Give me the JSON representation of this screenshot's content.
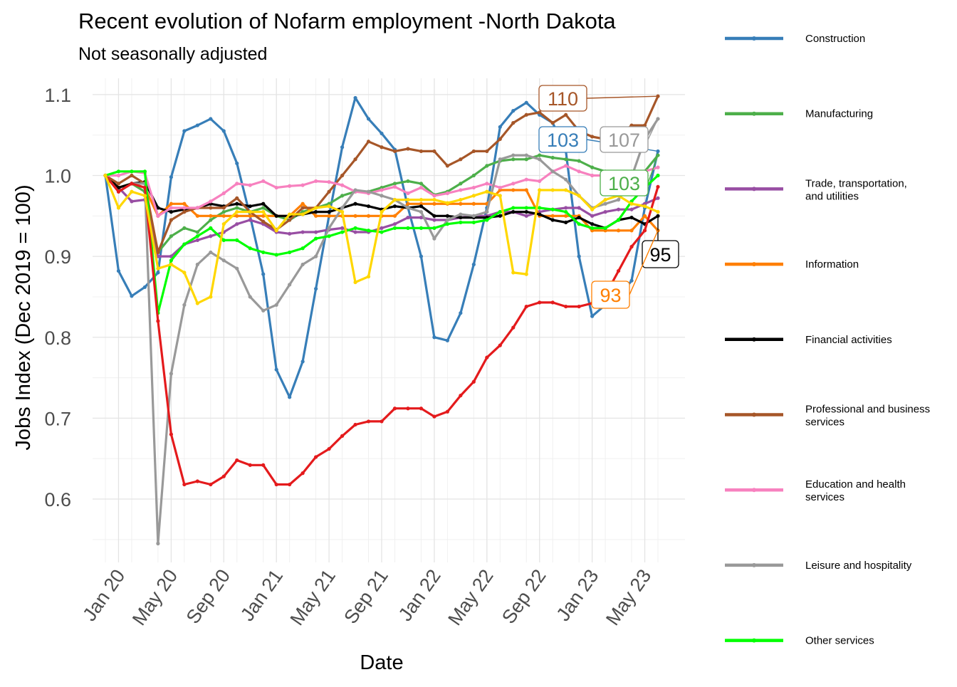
{
  "chart_data": {
    "type": "line",
    "title": "Recent evolution of Nofarm employment -North Dakota",
    "subtitle": "Not seasonally adjusted",
    "xlabel": "Date",
    "ylabel": "Jobs Index (Dec 2019 = 100)",
    "x_tick_labels": [
      "Jan 20",
      "May 20",
      "Sep 20",
      "Jan 21",
      "May 21",
      "Sep 21",
      "Jan 22",
      "May 22",
      "Sep 22",
      "Jan 23",
      "May 23"
    ],
    "y_tick_labels": [
      "0.6",
      "0.7",
      "0.8",
      "0.9",
      "1.0",
      "1.1"
    ],
    "y_ticks": [
      0.6,
      0.7,
      0.8,
      0.9,
      1.0,
      1.1
    ],
    "ylim": [
      0.52,
      1.13
    ],
    "grid": true,
    "legend_position": "right",
    "x_dates": [
      "Dec 19",
      "Jan 20",
      "Feb 20",
      "Mar 20",
      "Apr 20",
      "May 20",
      "Jun 20",
      "Jul 20",
      "Aug 20",
      "Sep 20",
      "Oct 20",
      "Nov 20",
      "Dec 20",
      "Jan 21",
      "Feb 21",
      "Mar 21",
      "Apr 21",
      "May 21",
      "Jun 21",
      "Jul 21",
      "Aug 21",
      "Sep 21",
      "Oct 21",
      "Nov 21",
      "Dec 21",
      "Jan 22",
      "Feb 22",
      "Mar 22",
      "Apr 22",
      "May 22",
      "Jun 22",
      "Jul 22",
      "Aug 22",
      "Sep 22",
      "Oct 22",
      "Nov 22",
      "Dec 22",
      "Jan 23",
      "Feb 23",
      "Mar 23",
      "Apr 23",
      "May 23",
      "Jun 23"
    ],
    "series": [
      {
        "name": "Construction",
        "color": "#377EB8",
        "values": [
          1.0,
          0.882,
          0.851,
          0.862,
          0.88,
          0.998,
          1.055,
          1.062,
          1.07,
          1.055,
          1.015,
          0.95,
          0.878,
          0.76,
          0.726,
          0.77,
          0.86,
          0.95,
          1.035,
          1.096,
          1.07,
          1.052,
          1.032,
          0.96,
          0.9,
          0.8,
          0.796,
          0.83,
          0.89,
          0.96,
          1.06,
          1.08,
          1.09,
          1.075,
          1.065,
          1.03,
          0.9,
          0.826,
          0.84,
          0.85,
          0.87,
          0.96,
          1.03
        ]
      },
      {
        "name": "Manufacturing",
        "color": "#4DAF4A",
        "values": [
          1.0,
          0.985,
          0.99,
          0.98,
          0.905,
          0.925,
          0.935,
          0.93,
          0.945,
          0.955,
          0.96,
          0.955,
          0.96,
          0.95,
          0.945,
          0.955,
          0.96,
          0.965,
          0.975,
          0.98,
          0.98,
          0.985,
          0.99,
          0.993,
          0.99,
          0.976,
          0.98,
          0.99,
          1.0,
          1.012,
          1.018,
          1.02,
          1.02,
          1.025,
          1.022,
          1.02,
          1.018,
          1.01,
          1.005,
          1.0,
          0.998,
          1.005,
          1.025
        ]
      },
      {
        "name": "Trade, transportation, and utilities",
        "color": "#984EA3",
        "values": [
          1.0,
          0.985,
          0.968,
          0.97,
          0.9,
          0.9,
          0.915,
          0.92,
          0.925,
          0.93,
          0.94,
          0.945,
          0.94,
          0.93,
          0.928,
          0.93,
          0.93,
          0.933,
          0.935,
          0.93,
          0.93,
          0.935,
          0.94,
          0.948,
          0.948,
          0.945,
          0.945,
          0.948,
          0.95,
          0.95,
          0.955,
          0.955,
          0.95,
          0.955,
          0.958,
          0.96,
          0.96,
          0.95,
          0.955,
          0.958,
          0.958,
          0.965,
          0.972
        ]
      },
      {
        "name": "Information",
        "color": "#FF7F00",
        "values": [
          1.0,
          0.985,
          0.99,
          0.985,
          0.95,
          0.965,
          0.965,
          0.95,
          0.95,
          0.95,
          0.95,
          0.95,
          0.95,
          0.95,
          0.95,
          0.965,
          0.95,
          0.95,
          0.95,
          0.95,
          0.95,
          0.95,
          0.95,
          0.965,
          0.965,
          0.965,
          0.965,
          0.965,
          0.965,
          0.965,
          0.982,
          0.982,
          0.982,
          0.95,
          0.95,
          0.95,
          0.95,
          0.932,
          0.932,
          0.932,
          0.932,
          0.95,
          0.932
        ]
      },
      {
        "name": "Financial activities",
        "color": "#000000",
        "values": [
          1.0,
          0.985,
          0.99,
          0.992,
          0.96,
          0.955,
          0.958,
          0.96,
          0.965,
          0.962,
          0.965,
          0.962,
          0.965,
          0.95,
          0.95,
          0.952,
          0.955,
          0.955,
          0.96,
          0.965,
          0.962,
          0.958,
          0.962,
          0.96,
          0.962,
          0.95,
          0.95,
          0.948,
          0.948,
          0.948,
          0.95,
          0.955,
          0.955,
          0.952,
          0.945,
          0.942,
          0.948,
          0.94,
          0.935,
          0.945,
          0.948,
          0.94,
          0.95
        ]
      },
      {
        "name": "Professional and business services",
        "color": "#A65628",
        "values": [
          1.0,
          0.99,
          1.0,
          0.99,
          0.905,
          0.945,
          0.955,
          0.96,
          0.96,
          0.96,
          0.972,
          0.955,
          0.943,
          0.933,
          0.945,
          0.96,
          0.96,
          0.98,
          1.0,
          1.02,
          1.042,
          1.035,
          1.03,
          1.033,
          1.03,
          1.03,
          1.012,
          1.02,
          1.03,
          1.03,
          1.045,
          1.065,
          1.075,
          1.078,
          1.065,
          1.075,
          1.055,
          1.048,
          1.045,
          1.048,
          1.062,
          1.062,
          1.098
        ]
      },
      {
        "name": "Education and health services",
        "color": "#F781BF",
        "values": [
          1.0,
          1.0,
          1.005,
          1.003,
          0.95,
          0.96,
          0.96,
          0.96,
          0.968,
          0.978,
          0.99,
          0.988,
          0.993,
          0.985,
          0.987,
          0.988,
          0.993,
          0.992,
          0.988,
          0.98,
          0.978,
          0.982,
          0.986,
          0.978,
          0.985,
          0.975,
          0.978,
          0.982,
          0.985,
          0.99,
          0.985,
          0.99,
          0.995,
          0.993,
          1.005,
          1.012,
          1.005,
          1.0,
          1.0,
          1.003,
          1.005,
          1.005,
          1.01
        ]
      },
      {
        "name": "Leisure and hospitality",
        "color": "#999999",
        "values": [
          1.0,
          0.98,
          0.99,
          0.99,
          0.545,
          0.755,
          0.84,
          0.89,
          0.905,
          0.895,
          0.885,
          0.85,
          0.833,
          0.84,
          0.865,
          0.89,
          0.9,
          0.935,
          0.96,
          0.982,
          0.98,
          0.975,
          0.97,
          0.96,
          0.955,
          0.922,
          0.945,
          0.952,
          0.95,
          0.955,
          1.02,
          1.025,
          1.025,
          1.02,
          1.005,
          0.995,
          0.975,
          0.96,
          0.965,
          0.97,
          0.998,
          1.045,
          1.07
        ]
      },
      {
        "name": "Other services",
        "color": "#00FF00",
        "values": [
          1.0,
          1.005,
          1.005,
          1.005,
          0.83,
          0.895,
          0.915,
          0.925,
          0.935,
          0.92,
          0.92,
          0.91,
          0.905,
          0.902,
          0.905,
          0.91,
          0.922,
          0.925,
          0.93,
          0.935,
          0.932,
          0.93,
          0.935,
          0.935,
          0.935,
          0.935,
          0.94,
          0.942,
          0.942,
          0.945,
          0.955,
          0.96,
          0.96,
          0.96,
          0.958,
          0.955,
          0.94,
          0.935,
          0.935,
          0.945,
          0.968,
          0.985,
          1.0
        ]
      },
      {
        "name": "",
        "color": "#E41A1C",
        "values": [
          1.0,
          0.98,
          0.99,
          0.985,
          0.82,
          0.68,
          0.618,
          0.622,
          0.618,
          0.628,
          0.648,
          0.642,
          0.642,
          0.618,
          0.618,
          0.632,
          0.652,
          0.662,
          0.678,
          0.692,
          0.696,
          0.696,
          0.712,
          0.712,
          0.712,
          0.702,
          0.708,
          0.728,
          0.745,
          0.775,
          0.79,
          0.812,
          0.838,
          0.843,
          0.843,
          0.838,
          0.838,
          0.842,
          0.852,
          0.882,
          0.912,
          0.932,
          0.986
        ]
      },
      {
        "name": "",
        "color": "#FFD700",
        "values": [
          1.0,
          0.96,
          0.98,
          0.975,
          0.885,
          0.89,
          0.88,
          0.842,
          0.85,
          0.94,
          0.955,
          0.955,
          0.955,
          0.932,
          0.952,
          0.952,
          0.96,
          0.962,
          0.955,
          0.868,
          0.875,
          0.955,
          0.97,
          0.97,
          0.97,
          0.97,
          0.966,
          0.97,
          0.975,
          0.98,
          0.975,
          0.88,
          0.878,
          0.982,
          0.982,
          0.982,
          0.975,
          0.958,
          0.97,
          0.975,
          0.965,
          0.962,
          0.955
        ]
      }
    ],
    "end_labels": [
      {
        "text": "110",
        "color": "#A65628",
        "series": "Professional and business services"
      },
      {
        "text": "103",
        "color": "#377EB8",
        "series": "Construction"
      },
      {
        "text": "107",
        "color": "#999999",
        "series": "Leisure and hospitality"
      },
      {
        "text": "103",
        "color": "#4DAF4A",
        "series": "Manufacturing"
      },
      {
        "text": "95",
        "color": "#000000",
        "series": "Financial activities"
      },
      {
        "text": "93",
        "color": "#FF7F00",
        "series": "Information"
      }
    ]
  }
}
